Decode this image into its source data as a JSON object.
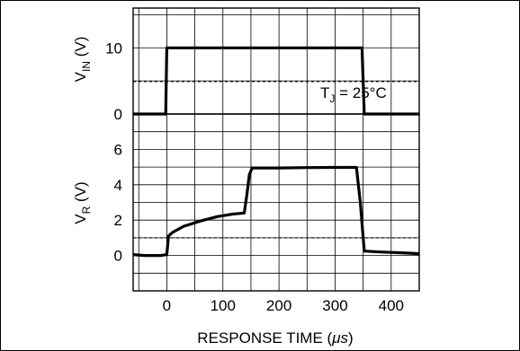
{
  "chart_data": {
    "type": "line",
    "x": {
      "label_prefix": "RESPONSE TIME (",
      "label_unit": "μs",
      "label_suffix": ")",
      "range": [
        -60,
        450
      ],
      "ticks": [
        0,
        100,
        200,
        300,
        400
      ],
      "tick_labels": [
        "0",
        "100",
        "200",
        "300",
        "400"
      ]
    },
    "panels": [
      {
        "id": "vin",
        "ylabel_main": "V",
        "ylabel_sub": "IN",
        "ylabel_unit": " (V)",
        "ylim": [
          0,
          16
        ],
        "ticks": [
          0,
          10
        ],
        "tick_labels": [
          "0",
          "10"
        ],
        "reference_level": 4.9,
        "annotation_main": "T",
        "annotation_sub": "J",
        "annotation_rest": " = 25°C",
        "points": [
          [
            -60,
            0
          ],
          [
            -2,
            0
          ],
          [
            0,
            10
          ],
          [
            348,
            10
          ],
          [
            352,
            0
          ],
          [
            450,
            0
          ]
        ]
      },
      {
        "id": "vr",
        "ylabel_main": "V",
        "ylabel_sub": "R",
        "ylabel_unit": " (V)",
        "ylim": [
          -2,
          8
        ],
        "ticks": [
          0,
          2,
          4,
          6
        ],
        "tick_labels": [
          "0",
          "2",
          "4",
          "6"
        ],
        "reference_level": 1.0,
        "points": [
          [
            -60,
            0.05
          ],
          [
            -40,
            0.0
          ],
          [
            -10,
            0.0
          ],
          [
            0,
            0.05
          ],
          [
            3,
            1.1
          ],
          [
            10,
            1.3
          ],
          [
            30,
            1.65
          ],
          [
            60,
            1.95
          ],
          [
            90,
            2.2
          ],
          [
            120,
            2.35
          ],
          [
            138,
            2.4
          ],
          [
            143,
            3.5
          ],
          [
            147,
            4.55
          ],
          [
            152,
            4.95
          ],
          [
            200,
            4.95
          ],
          [
            250,
            4.97
          ],
          [
            300,
            4.98
          ],
          [
            338,
            4.98
          ],
          [
            345,
            3.0
          ],
          [
            352,
            0.25
          ],
          [
            380,
            0.2
          ],
          [
            420,
            0.15
          ],
          [
            450,
            0.1
          ]
        ]
      }
    ],
    "grid": true
  }
}
